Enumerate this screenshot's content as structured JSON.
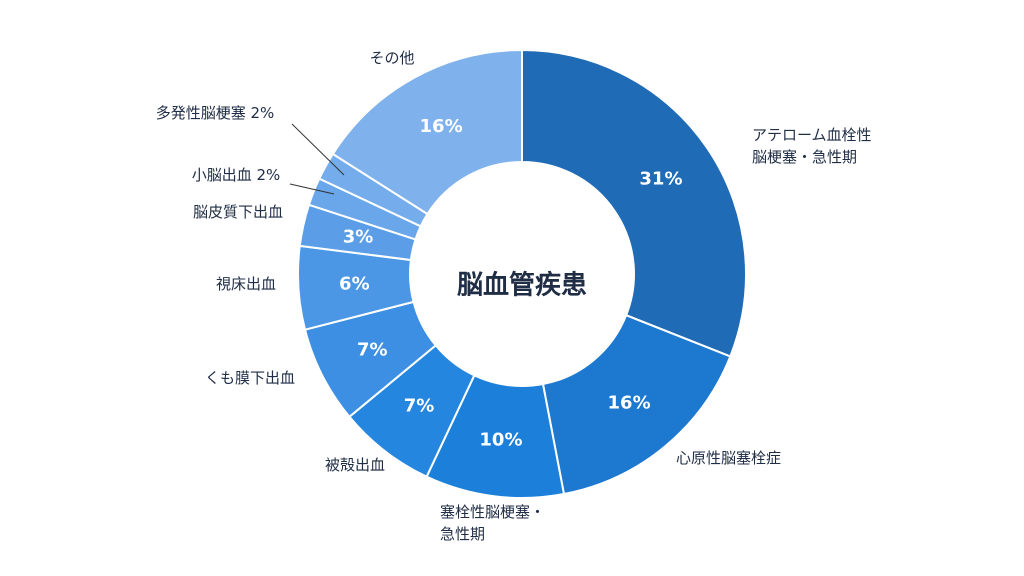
{
  "chart_data": {
    "type": "pie",
    "title": "脳血管疾患",
    "slices": [
      {
        "label": "アテローム血栓性\n脳梗塞・急性期",
        "value": 31,
        "display": "31%",
        "color": "#1f6bb6"
      },
      {
        "label": "心原性脳塞栓症",
        "value": 16,
        "display": "16%",
        "color": "#1d78cf"
      },
      {
        "label": "塞栓性脳梗塞・\n急性期",
        "value": 10,
        "display": "10%",
        "color": "#1c80db"
      },
      {
        "label": "被殻出血",
        "value": 7,
        "display": "7%",
        "color": "#2586e0"
      },
      {
        "label": "くも膜下出血",
        "value": 7,
        "display": "7%",
        "color": "#3c8fe2"
      },
      {
        "label": "視床出血",
        "value": 6,
        "display": "6%",
        "color": "#4b97e5"
      },
      {
        "label": "脳皮質下出血",
        "value": 3,
        "display": "3%",
        "color": "#5b9ee7"
      },
      {
        "label": "小脳出血 2%",
        "value": 2,
        "display": "",
        "color": "#6aa6ea"
      },
      {
        "label": "多発性脳梗塞 2%",
        "value": 2,
        "display": "",
        "color": "#75acec"
      },
      {
        "label": "その他",
        "value": 16,
        "display": "16%",
        "color": "#7fb2ec"
      }
    ]
  }
}
